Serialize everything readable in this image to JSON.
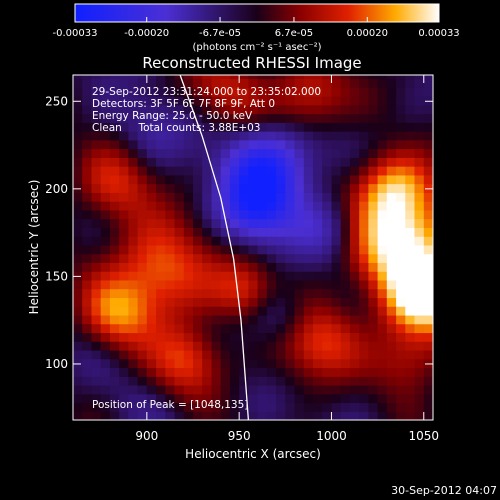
{
  "chart_data": {
    "type": "heatmap",
    "title": "Reconstructed RHESSI Image",
    "xlabel": "Heliocentric X (arcsec)",
    "ylabel": "Heliocentric Y (arcsec)",
    "xlim": [
      860,
      1055
    ],
    "ylim": [
      68,
      265
    ],
    "x_ticks": [
      900,
      950,
      1000,
      1050
    ],
    "y_ticks": [
      100,
      150,
      200,
      250
    ],
    "colorbar": {
      "vmin": -0.00033,
      "vmax": 0.00033,
      "tick_values": [
        -0.00033,
        -0.0002,
        -6.7e-05,
        6.7e-05,
        0.0002,
        0.00033
      ],
      "tick_labels": [
        "-0.00033",
        "-0.00020",
        "-6.7e-05",
        "6.7e-05",
        "0.00020",
        "0.00033"
      ],
      "units_label": "(photons cm⁻² s⁻¹ asec⁻²)"
    },
    "annotations": [
      "29-Sep-2012 23:31:24.000 to 23:35:02.000",
      "Detectors: 3F 5F 6F 7F 8F 9F, Att 0",
      "Energy Range: 25.0 - 50.0 keV",
      "Clean     Total counts: 3.88E+03"
    ],
    "peak_label": "Position of Peak = [1048,135]",
    "peak_position": [
      1048,
      135
    ],
    "limb_curve": [
      [
        918,
        265
      ],
      [
        930,
        230
      ],
      [
        940,
        195
      ],
      [
        947,
        160
      ],
      [
        951,
        125
      ],
      [
        955,
        68
      ]
    ],
    "limb_color": "#ffffff"
  },
  "timestamp": "30-Sep-2012 04:07",
  "colors": {
    "background": "#000000",
    "text": "#ffffff"
  }
}
